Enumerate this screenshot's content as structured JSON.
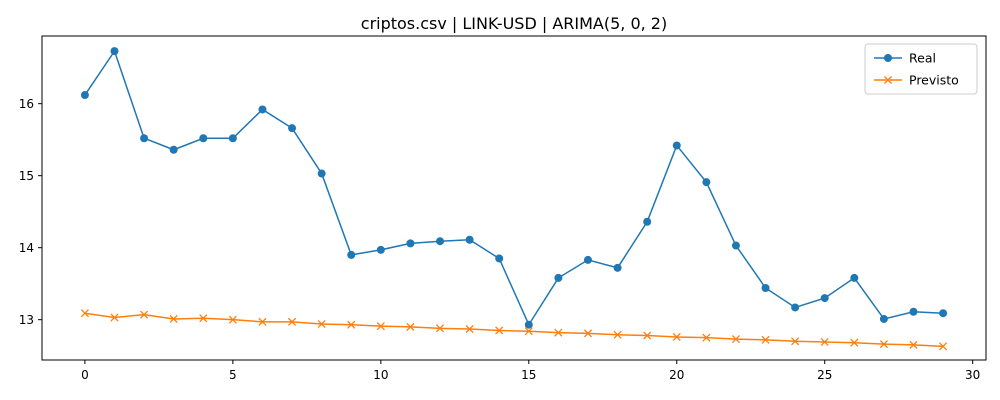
{
  "chart_data": {
    "type": "line",
    "title": "criptos.csv | LINK-USD | ARIMA(5, 0, 2)",
    "xlabel": "",
    "ylabel": "",
    "xlim": [
      -1.45,
      30.45
    ],
    "ylim": [
      12.44,
      16.94
    ],
    "xticks": [
      0,
      5,
      10,
      15,
      20,
      25,
      30
    ],
    "yticks": [
      13,
      14,
      15,
      16
    ],
    "legend_position": "top-right",
    "grid": false,
    "x": [
      0,
      1,
      2,
      3,
      4,
      5,
      6,
      7,
      8,
      9,
      10,
      11,
      12,
      13,
      14,
      15,
      16,
      17,
      18,
      19,
      20,
      21,
      22,
      23,
      24,
      25,
      26,
      27,
      28,
      29
    ],
    "series": [
      {
        "name": "Real",
        "color": "#1f77b4",
        "marker": "circle",
        "values": [
          16.12,
          16.73,
          15.52,
          15.36,
          15.52,
          15.52,
          15.92,
          15.66,
          15.03,
          13.9,
          13.97,
          14.06,
          14.09,
          14.11,
          13.85,
          12.93,
          13.58,
          13.83,
          13.72,
          14.36,
          15.42,
          14.91,
          14.03,
          13.44,
          13.17,
          13.3,
          13.58,
          13.01,
          13.11,
          13.09
        ]
      },
      {
        "name": "Previsto",
        "color": "#ff7f0e",
        "marker": "x",
        "values": [
          13.09,
          13.03,
          13.07,
          13.01,
          13.02,
          13.0,
          12.97,
          12.97,
          12.94,
          12.93,
          12.91,
          12.9,
          12.88,
          12.87,
          12.85,
          12.84,
          12.82,
          12.81,
          12.79,
          12.78,
          12.76,
          12.75,
          12.73,
          12.72,
          12.7,
          12.69,
          12.68,
          12.66,
          12.65,
          12.63
        ]
      }
    ]
  }
}
